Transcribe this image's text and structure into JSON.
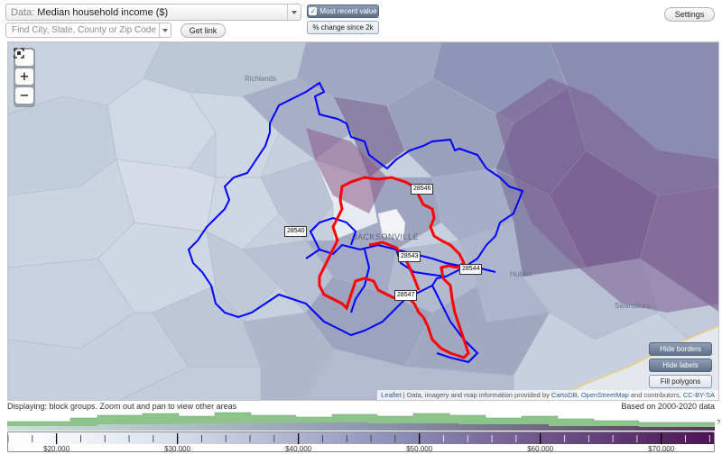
{
  "toolbar": {
    "data_label": "Data:",
    "data_value": "Median household income ($)",
    "find_placeholder": "Find City, State, County or Zip Code",
    "get_link": "Get link",
    "most_recent": "Most recent value",
    "pct_change": "% change since 2k",
    "settings": "Settings"
  },
  "map": {
    "place_labels": [
      "Richlands",
      "Hubert",
      "Swansboro",
      "JACKSONVILLE"
    ],
    "zip_labels": [
      "28546",
      "28540",
      "28543",
      "28544",
      "28547"
    ],
    "zoom_in": "+",
    "zoom_out": "−",
    "buttons": {
      "hide_borders": "Hide borders",
      "hide_labels": "Hide labels",
      "fill_polygons": "Fill polygons"
    },
    "attribution": {
      "leaflet": "Leaflet",
      "sep": " | Data, imagery and map information provided by ",
      "cartodb": "CartoDB",
      "comma": ", ",
      "osm": "OpenStreetMap",
      "rest": " and contributors, ",
      "license": "CC-BY-SA"
    }
  },
  "status": {
    "displaying": "Displaying: block groups. Zoom out and pan to view other areas",
    "based_on": "Based on 2000-2020 data"
  },
  "legend": {
    "question_mark": "?",
    "tick_labels": [
      "$20,000",
      "$30,000",
      "$40,000",
      "$50,000",
      "$60,000",
      "$70,000"
    ],
    "tick_values": [
      20000,
      30000,
      40000,
      50000,
      60000,
      70000
    ],
    "range": [
      16000,
      74500
    ],
    "color_low": "#dfe6ef",
    "color_high": "#4b1252"
  },
  "colors": {
    "highlight_border": "#ff0000",
    "zip_border": "#0000ff",
    "histogram_green": "#8cc48c"
  }
}
